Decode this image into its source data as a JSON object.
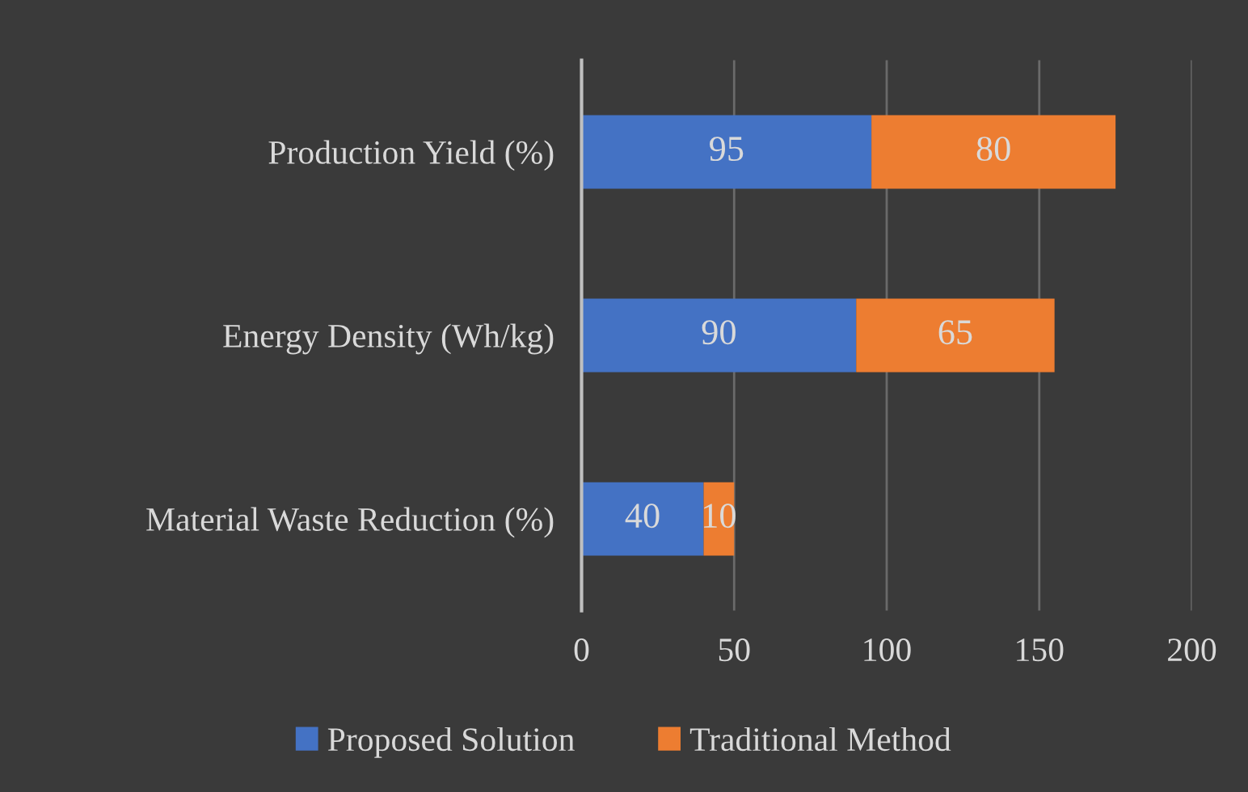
{
  "chart_data": {
    "type": "bar",
    "orientation": "horizontal",
    "stacked": true,
    "categories": [
      "Production Yield (%)",
      "Energy Density (Wh/kg)",
      "Material Waste Reduction (%)"
    ],
    "series": [
      {
        "name": "Proposed Solution",
        "color": "#4472c4",
        "values": [
          95,
          90,
          40
        ]
      },
      {
        "name": "Traditional Method",
        "color": "#ed7d31",
        "values": [
          80,
          65,
          10
        ]
      }
    ],
    "xlim": [
      0,
      200
    ],
    "xticks": [
      0,
      50,
      100,
      150,
      200
    ],
    "grid": "x",
    "legend": "bottom",
    "data_labels": true
  }
}
